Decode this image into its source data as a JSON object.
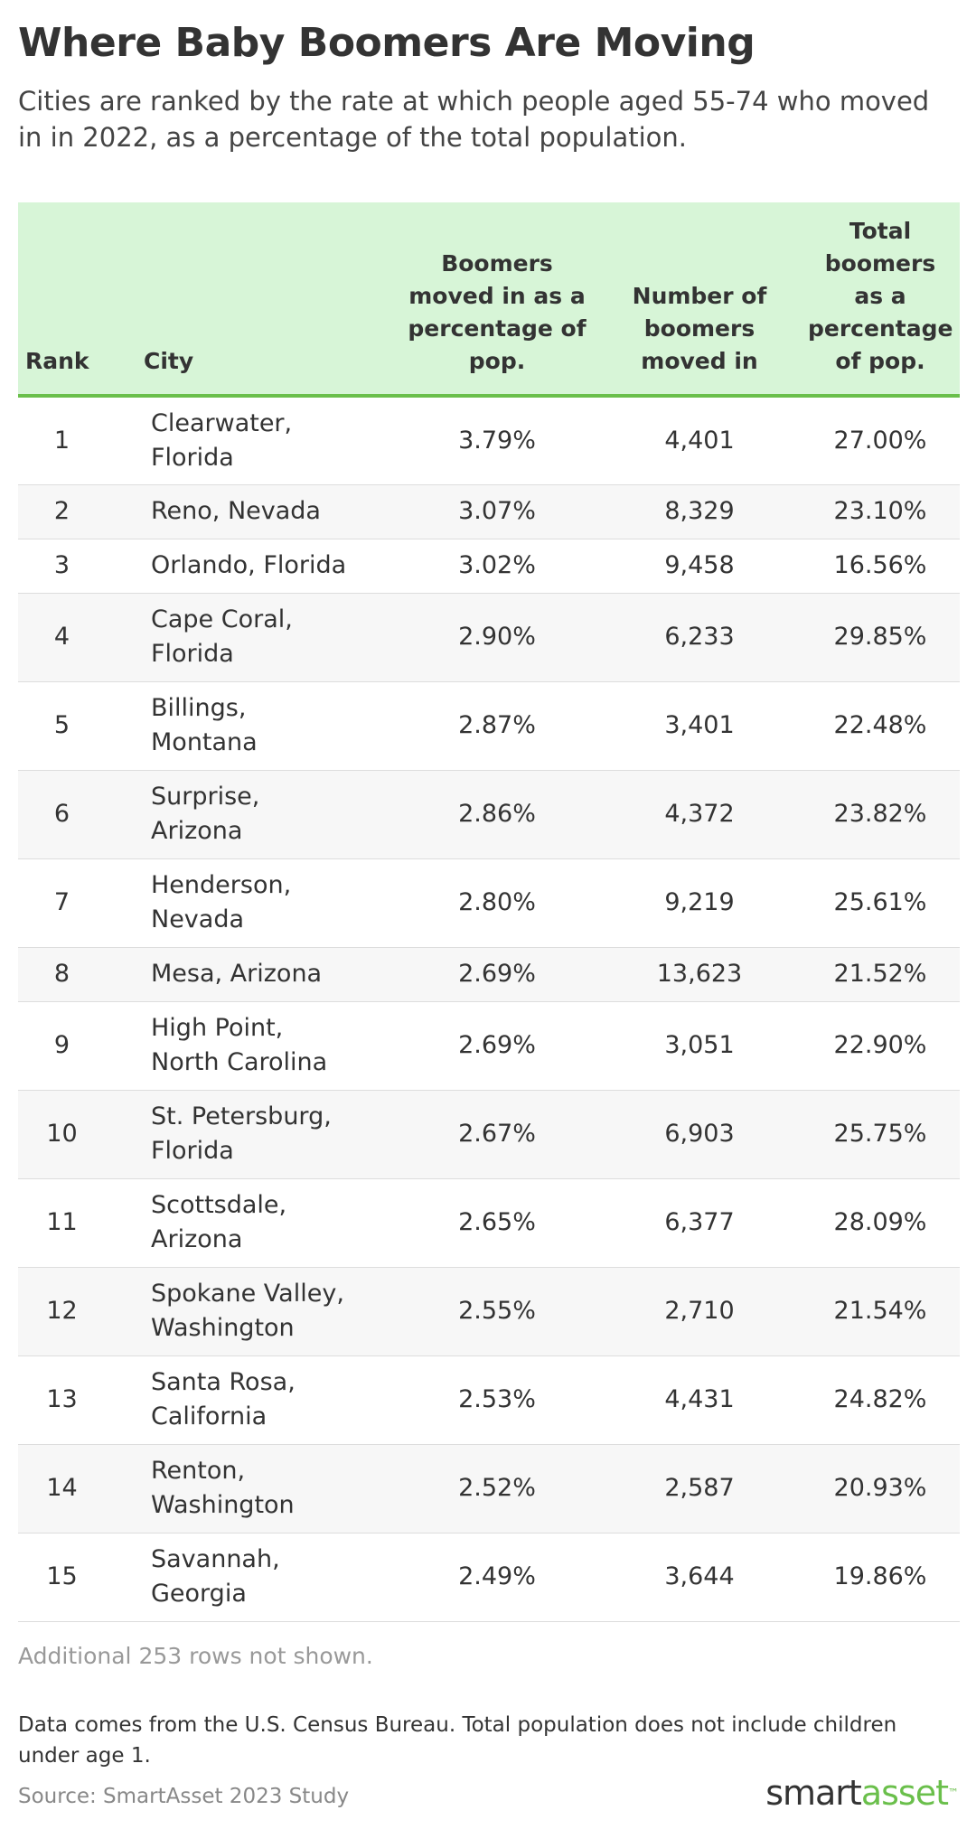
{
  "title": "Where Baby Boomers Are Moving",
  "subtitle": "Cities are ranked by the rate at which people aged 55-74 who moved in in 2022, as a percentage of the total population.",
  "colors": {
    "header_bg": "#d7f5d7",
    "header_rule": "#6abf4b",
    "stripe": "#f7f7f7",
    "brand_green": "#6abf4b"
  },
  "chart_data": {
    "type": "table",
    "title": "Where Baby Boomers Are Moving",
    "columns": [
      "Rank",
      "City",
      "Boomers moved in as a percentage of pop.",
      "Number of boomers moved in",
      "Total boomers as a percentage of pop."
    ],
    "rows": [
      {
        "rank": "1",
        "city": "Clearwater, Florida",
        "pct_moved": "3.79%",
        "num_moved": "4,401",
        "pct_total": "27.00%"
      },
      {
        "rank": "2",
        "city": "Reno, Nevada",
        "pct_moved": "3.07%",
        "num_moved": "8,329",
        "pct_total": "23.10%"
      },
      {
        "rank": "3",
        "city": "Orlando, Florida",
        "pct_moved": "3.02%",
        "num_moved": "9,458",
        "pct_total": "16.56%"
      },
      {
        "rank": "4",
        "city": "Cape Coral, Florida",
        "pct_moved": "2.90%",
        "num_moved": "6,233",
        "pct_total": "29.85%"
      },
      {
        "rank": "5",
        "city": "Billings, Montana",
        "pct_moved": "2.87%",
        "num_moved": "3,401",
        "pct_total": "22.48%"
      },
      {
        "rank": "6",
        "city": "Surprise, Arizona",
        "pct_moved": "2.86%",
        "num_moved": "4,372",
        "pct_total": "23.82%"
      },
      {
        "rank": "7",
        "city": "Henderson, Nevada",
        "pct_moved": "2.80%",
        "num_moved": "9,219",
        "pct_total": "25.61%"
      },
      {
        "rank": "8",
        "city": "Mesa, Arizona",
        "pct_moved": "2.69%",
        "num_moved": "13,623",
        "pct_total": "21.52%"
      },
      {
        "rank": "9",
        "city": "High Point, North Carolina",
        "pct_moved": "2.69%",
        "num_moved": "3,051",
        "pct_total": "22.90%"
      },
      {
        "rank": "10",
        "city": "St. Petersburg, Florida",
        "pct_moved": "2.67%",
        "num_moved": "6,903",
        "pct_total": "25.75%"
      },
      {
        "rank": "11",
        "city": "Scottsdale, Arizona",
        "pct_moved": "2.65%",
        "num_moved": "6,377",
        "pct_total": "28.09%"
      },
      {
        "rank": "12",
        "city": "Spokane Valley, Washington",
        "pct_moved": "2.55%",
        "num_moved": "2,710",
        "pct_total": "21.54%"
      },
      {
        "rank": "13",
        "city": "Santa Rosa, California",
        "pct_moved": "2.53%",
        "num_moved": "4,431",
        "pct_total": "24.82%"
      },
      {
        "rank": "14",
        "city": "Renton, Washington",
        "pct_moved": "2.52%",
        "num_moved": "2,587",
        "pct_total": "20.93%"
      },
      {
        "rank": "15",
        "city": "Savannah, Georgia",
        "pct_moved": "2.49%",
        "num_moved": "3,644",
        "pct_total": "19.86%"
      }
    ]
  },
  "footer": {
    "more_rows": "Additional 253 rows not shown.",
    "note": "Data comes from the U.S. Census Bureau. Total population does not include children under age 1.",
    "source": "Source: SmartAsset 2023 Study"
  },
  "logo": {
    "part1": "smart",
    "part2": "asset",
    "tm": "™"
  }
}
